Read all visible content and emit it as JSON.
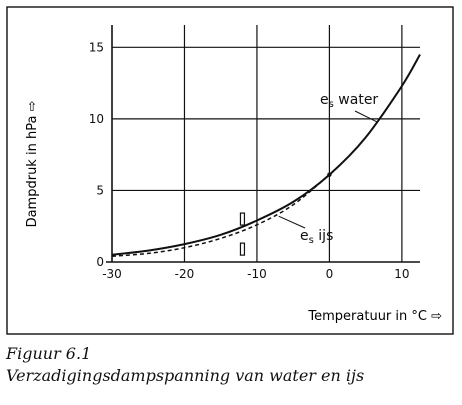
{
  "chart_data": {
    "type": "line",
    "xlabel": "Temperatuur in °C ⇨",
    "ylabel": "Dampdruk in hPa ⇨",
    "xlim": [
      -30,
      12.5
    ],
    "ylim": [
      0,
      16
    ],
    "x_ticks": [
      "-30",
      "-20",
      "-10",
      "0",
      "10"
    ],
    "x_tick_values": [
      -30,
      -20,
      -10,
      0,
      10
    ],
    "y_ticks": [
      "0",
      "5",
      "10",
      "15"
    ],
    "y_tick_values": [
      0,
      5,
      10,
      15
    ],
    "grid": true,
    "series": [
      {
        "name": "e_s water",
        "style": "solid",
        "x": [
          -30,
          -25,
          -20,
          -15,
          -10,
          -5,
          0,
          5,
          10,
          12.5
        ],
        "y": [
          0.5,
          0.8,
          1.25,
          1.9,
          2.9,
          4.2,
          6.1,
          8.7,
          12.3,
          14.5
        ]
      },
      {
        "name": "e_s ijs",
        "style": "dashed",
        "x": [
          -30,
          -25,
          -20,
          -15,
          -10,
          -5,
          0
        ],
        "y": [
          0.4,
          0.6,
          1.0,
          1.65,
          2.6,
          4.0,
          6.1
        ]
      }
    ],
    "annotations": {
      "water_label": {
        "main": "e",
        "sub": "s",
        "rest": " water"
      },
      "ice_label": {
        "main": "e",
        "sub": "s",
        "rest": " ijs"
      }
    }
  },
  "caption": {
    "title": "Figuur 6.1",
    "text": "Verzadigingsdampspanning van water en ijs"
  }
}
